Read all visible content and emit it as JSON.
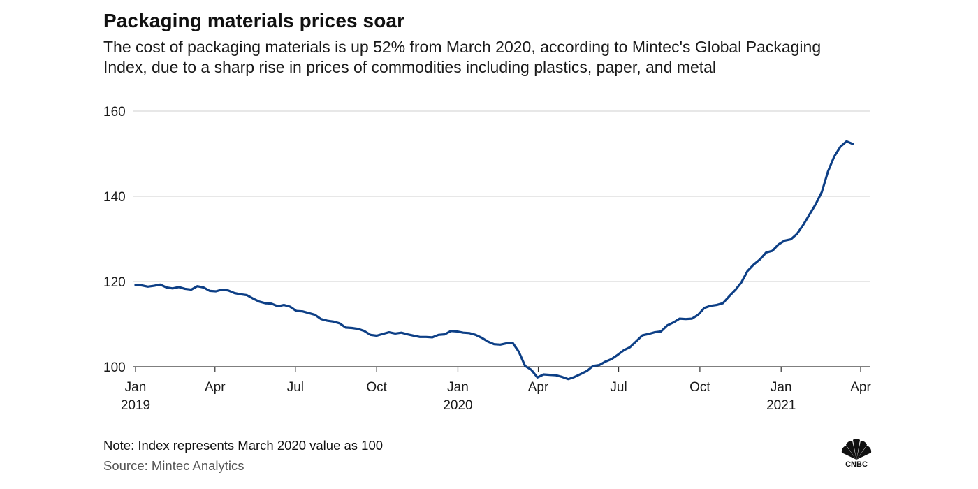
{
  "header": {
    "title": "Packaging materials prices soar",
    "subtitle": "The cost of packaging materials is up 52% from March 2020, according to Mintec's Global Packaging Index, due to a sharp rise in prices of commodities including plastics, paper, and metal"
  },
  "footer": {
    "note": "Note: Index represents March 2020 value as 100",
    "source": "Source: Mintec Analytics",
    "logo_text": "CNBC"
  },
  "colors": {
    "line": "#0d3f86",
    "grid": "#cfcfcf",
    "axis": "#333333"
  },
  "chart_data": {
    "type": "line",
    "title": "Packaging materials prices soar",
    "xlabel": "",
    "ylabel": "",
    "ylim": [
      100,
      160
    ],
    "yticks": [
      100,
      120,
      140,
      160
    ],
    "grid": true,
    "xticks": [
      {
        "date": "2019-01-01",
        "label": "Jan",
        "year": "2019"
      },
      {
        "date": "2019-04-01",
        "label": "Apr",
        "year": ""
      },
      {
        "date": "2019-07-01",
        "label": "Jul",
        "year": ""
      },
      {
        "date": "2019-10-01",
        "label": "Oct",
        "year": ""
      },
      {
        "date": "2020-01-01",
        "label": "Jan",
        "year": "2020"
      },
      {
        "date": "2020-04-01",
        "label": "Apr",
        "year": ""
      },
      {
        "date": "2020-07-01",
        "label": "Jul",
        "year": ""
      },
      {
        "date": "2020-10-01",
        "label": "Oct",
        "year": ""
      },
      {
        "date": "2021-01-01",
        "label": "Jan",
        "year": "2021"
      },
      {
        "date": "2021-04-01",
        "label": "Apr",
        "year": ""
      }
    ],
    "series": [
      {
        "name": "",
        "points": [
          [
            "2019-01-01",
            119.2
          ],
          [
            "2019-01-08",
            119.1
          ],
          [
            "2019-01-15",
            118.8
          ],
          [
            "2019-01-22",
            119.0
          ],
          [
            "2019-01-29",
            119.3
          ],
          [
            "2019-02-05",
            118.6
          ],
          [
            "2019-02-12",
            118.4
          ],
          [
            "2019-02-19",
            118.7
          ],
          [
            "2019-02-26",
            118.3
          ],
          [
            "2019-03-05",
            118.1
          ],
          [
            "2019-03-12",
            118.9
          ],
          [
            "2019-03-19",
            118.6
          ],
          [
            "2019-03-26",
            117.8
          ],
          [
            "2019-04-02",
            117.7
          ],
          [
            "2019-04-09",
            118.1
          ],
          [
            "2019-04-16",
            117.9
          ],
          [
            "2019-04-23",
            117.3
          ],
          [
            "2019-04-30",
            117.0
          ],
          [
            "2019-05-07",
            116.8
          ],
          [
            "2019-05-14",
            116.0
          ],
          [
            "2019-05-21",
            115.3
          ],
          [
            "2019-05-28",
            114.9
          ],
          [
            "2019-06-04",
            114.8
          ],
          [
            "2019-06-11",
            114.2
          ],
          [
            "2019-06-18",
            114.5
          ],
          [
            "2019-06-25",
            114.1
          ],
          [
            "2019-07-02",
            113.1
          ],
          [
            "2019-07-09",
            113.0
          ],
          [
            "2019-07-16",
            112.6
          ],
          [
            "2019-07-23",
            112.2
          ],
          [
            "2019-07-30",
            111.2
          ],
          [
            "2019-08-06",
            110.8
          ],
          [
            "2019-08-13",
            110.6
          ],
          [
            "2019-08-20",
            110.2
          ],
          [
            "2019-08-27",
            109.2
          ],
          [
            "2019-09-03",
            109.1
          ],
          [
            "2019-09-10",
            108.9
          ],
          [
            "2019-09-17",
            108.4
          ],
          [
            "2019-09-24",
            107.5
          ],
          [
            "2019-10-01",
            107.3
          ],
          [
            "2019-10-08",
            107.7
          ],
          [
            "2019-10-15",
            108.1
          ],
          [
            "2019-10-22",
            107.8
          ],
          [
            "2019-10-29",
            108.0
          ],
          [
            "2019-11-05",
            107.6
          ],
          [
            "2019-11-12",
            107.3
          ],
          [
            "2019-11-19",
            107.0
          ],
          [
            "2019-11-26",
            107.0
          ],
          [
            "2019-12-03",
            106.9
          ],
          [
            "2019-12-10",
            107.5
          ],
          [
            "2019-12-17",
            107.6
          ],
          [
            "2019-12-24",
            108.4
          ],
          [
            "2019-12-31",
            108.3
          ],
          [
            "2020-01-07",
            108.0
          ],
          [
            "2020-01-14",
            107.9
          ],
          [
            "2020-01-21",
            107.5
          ],
          [
            "2020-01-28",
            106.8
          ],
          [
            "2020-02-04",
            105.9
          ],
          [
            "2020-02-11",
            105.3
          ],
          [
            "2020-02-18",
            105.2
          ],
          [
            "2020-02-25",
            105.5
          ],
          [
            "2020-03-03",
            105.6
          ],
          [
            "2020-03-10",
            103.5
          ],
          [
            "2020-03-17",
            100.2
          ],
          [
            "2020-03-24",
            99.3
          ],
          [
            "2020-03-31",
            97.5
          ],
          [
            "2020-04-07",
            98.2
          ],
          [
            "2020-04-14",
            98.1
          ],
          [
            "2020-04-21",
            98.0
          ],
          [
            "2020-04-28",
            97.6
          ],
          [
            "2020-05-05",
            97.1
          ],
          [
            "2020-05-12",
            97.6
          ],
          [
            "2020-05-19",
            98.3
          ],
          [
            "2020-05-26",
            99.0
          ],
          [
            "2020-06-02",
            100.2
          ],
          [
            "2020-06-09",
            100.4
          ],
          [
            "2020-06-16",
            101.2
          ],
          [
            "2020-06-23",
            101.8
          ],
          [
            "2020-06-30",
            102.8
          ],
          [
            "2020-07-07",
            103.9
          ],
          [
            "2020-07-14",
            104.6
          ],
          [
            "2020-07-21",
            106.0
          ],
          [
            "2020-07-28",
            107.4
          ],
          [
            "2020-08-04",
            107.7
          ],
          [
            "2020-08-11",
            108.1
          ],
          [
            "2020-08-18",
            108.3
          ],
          [
            "2020-08-25",
            109.7
          ],
          [
            "2020-09-01",
            110.4
          ],
          [
            "2020-09-08",
            111.3
          ],
          [
            "2020-09-15",
            111.2
          ],
          [
            "2020-09-22",
            111.3
          ],
          [
            "2020-09-29",
            112.2
          ],
          [
            "2020-10-06",
            113.8
          ],
          [
            "2020-10-13",
            114.3
          ],
          [
            "2020-10-20",
            114.5
          ],
          [
            "2020-10-27",
            114.9
          ],
          [
            "2020-11-03",
            116.5
          ],
          [
            "2020-11-10",
            118.0
          ],
          [
            "2020-11-17",
            119.8
          ],
          [
            "2020-11-24",
            122.5
          ],
          [
            "2020-12-01",
            124.0
          ],
          [
            "2020-12-08",
            125.2
          ],
          [
            "2020-12-15",
            126.8
          ],
          [
            "2020-12-22",
            127.2
          ],
          [
            "2020-12-29",
            128.7
          ],
          [
            "2021-01-05",
            129.6
          ],
          [
            "2021-01-12",
            129.9
          ],
          [
            "2021-01-19",
            131.2
          ],
          [
            "2021-01-26",
            133.3
          ],
          [
            "2021-02-02",
            135.7
          ],
          [
            "2021-02-09",
            138.1
          ],
          [
            "2021-02-16",
            141.0
          ],
          [
            "2021-02-23",
            145.8
          ],
          [
            "2021-03-02",
            149.3
          ],
          [
            "2021-03-09",
            151.6
          ],
          [
            "2021-03-16",
            152.9
          ],
          [
            "2021-03-23",
            152.3
          ]
        ]
      }
    ]
  }
}
